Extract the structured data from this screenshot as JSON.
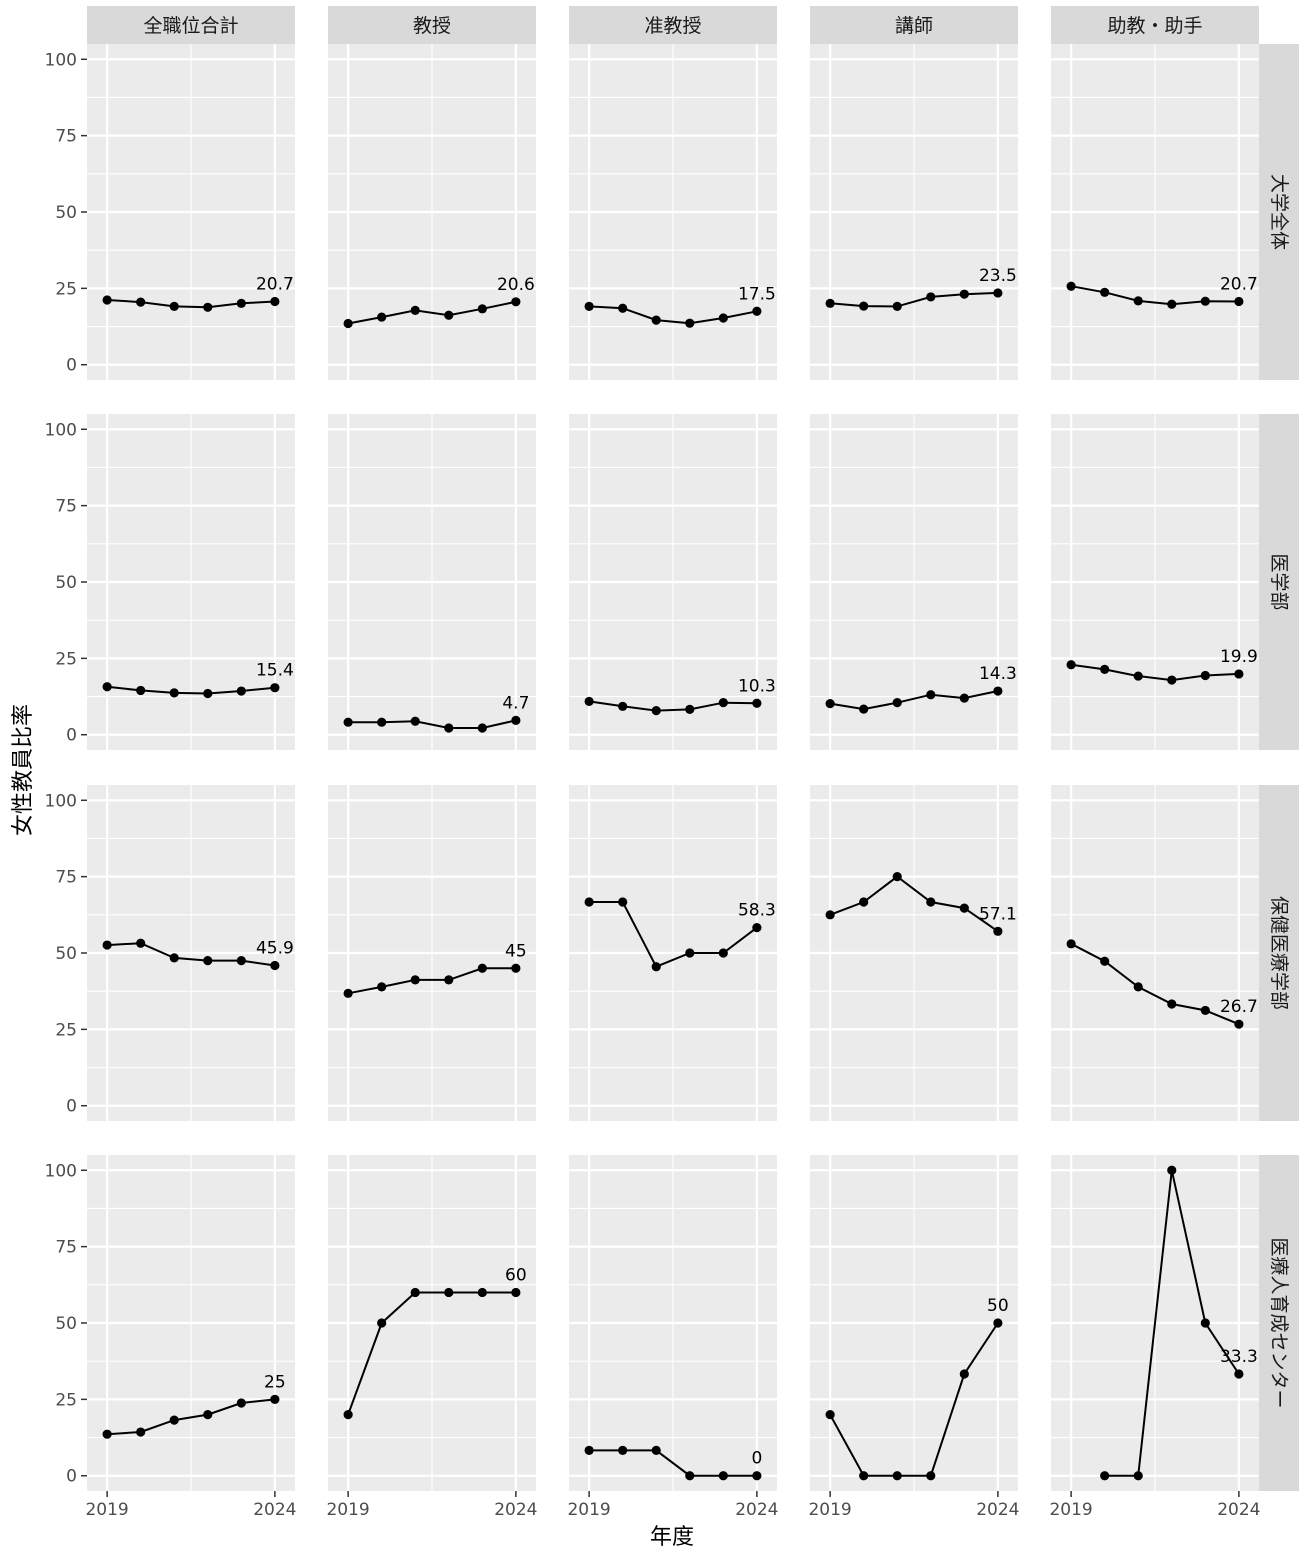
{
  "chart_data": {
    "type": "line",
    "xlabel": "年度",
    "ylabel": "女性教員比率",
    "ylim": [
      -5,
      105
    ],
    "y_ticks": [
      "0",
      "25",
      "50",
      "75",
      "100"
    ],
    "x_ticks": [
      "2019",
      "2024"
    ],
    "x_range": [
      2018.4,
      2024.6
    ],
    "grid": true,
    "columns": [
      "全職位合計",
      "教授",
      "准教授",
      "講師",
      "助教・助手"
    ],
    "rows": [
      "大学全体",
      "医学部",
      "保健医療学部",
      "医療人育成センター"
    ],
    "years": [
      2019,
      2020,
      2021,
      2022,
      2023,
      2024
    ],
    "panels": [
      [
        {
          "values": [
            21.2,
            20.5,
            19.1,
            18.8,
            20.1,
            20.7
          ],
          "last_label": "20.7"
        },
        {
          "values": [
            13.5,
            15.6,
            17.8,
            16.2,
            18.3,
            20.6
          ],
          "last_label": "20.6"
        },
        {
          "values": [
            19.1,
            18.5,
            14.6,
            13.6,
            15.3,
            17.5
          ],
          "last_label": "17.5"
        },
        {
          "values": [
            20.1,
            19.2,
            19.1,
            22.2,
            23.1,
            23.5
          ],
          "last_label": "23.5"
        },
        {
          "values": [
            25.7,
            23.7,
            20.9,
            19.8,
            20.8,
            20.7
          ],
          "last_label": "20.7"
        }
      ],
      [
        {
          "values": [
            15.7,
            14.5,
            13.7,
            13.5,
            14.3,
            15.4
          ],
          "last_label": "15.4"
        },
        {
          "values": [
            4.1,
            4.1,
            4.4,
            2.2,
            2.2,
            4.7
          ],
          "last_label": "4.7"
        },
        {
          "values": [
            10.9,
            9.3,
            7.9,
            8.3,
            10.5,
            10.3
          ],
          "last_label": "10.3"
        },
        {
          "values": [
            10.2,
            8.4,
            10.5,
            13.1,
            12.0,
            14.3
          ],
          "last_label": "14.3"
        },
        {
          "values": [
            22.9,
            21.4,
            19.2,
            17.9,
            19.4,
            19.9
          ],
          "last_label": "19.9"
        }
      ],
      [
        {
          "values": [
            52.6,
            53.2,
            48.4,
            47.5,
            47.5,
            45.9
          ],
          "last_label": "45.9"
        },
        {
          "values": [
            36.8,
            38.9,
            41.2,
            41.2,
            45.0,
            45.0
          ],
          "last_label": "45"
        },
        {
          "values": [
            66.7,
            66.7,
            45.5,
            50.0,
            50.0,
            58.3
          ],
          "last_label": "58.3"
        },
        {
          "values": [
            62.5,
            66.7,
            75.0,
            66.7,
            64.7,
            57.1
          ],
          "last_label": "57.1"
        },
        {
          "values": [
            53.0,
            47.3,
            38.9,
            33.3,
            31.2,
            26.7
          ],
          "last_label": "26.7"
        }
      ],
      [
        {
          "values": [
            13.6,
            14.3,
            18.2,
            20.0,
            23.8,
            25.0
          ],
          "last_label": "25"
        },
        {
          "values": [
            20.0,
            50.0,
            60.0,
            60.0,
            60.0,
            60.0
          ],
          "last_label": "60"
        },
        {
          "values": [
            8.3,
            8.3,
            8.3,
            0,
            0,
            0
          ],
          "last_label": "0"
        },
        {
          "values": [
            20.0,
            0,
            0,
            0,
            33.3,
            50.0
          ],
          "last_label": "50"
        },
        {
          "values": [
            null,
            0,
            0,
            100,
            50.0,
            33.3
          ],
          "last_label": "33.3"
        }
      ]
    ]
  }
}
